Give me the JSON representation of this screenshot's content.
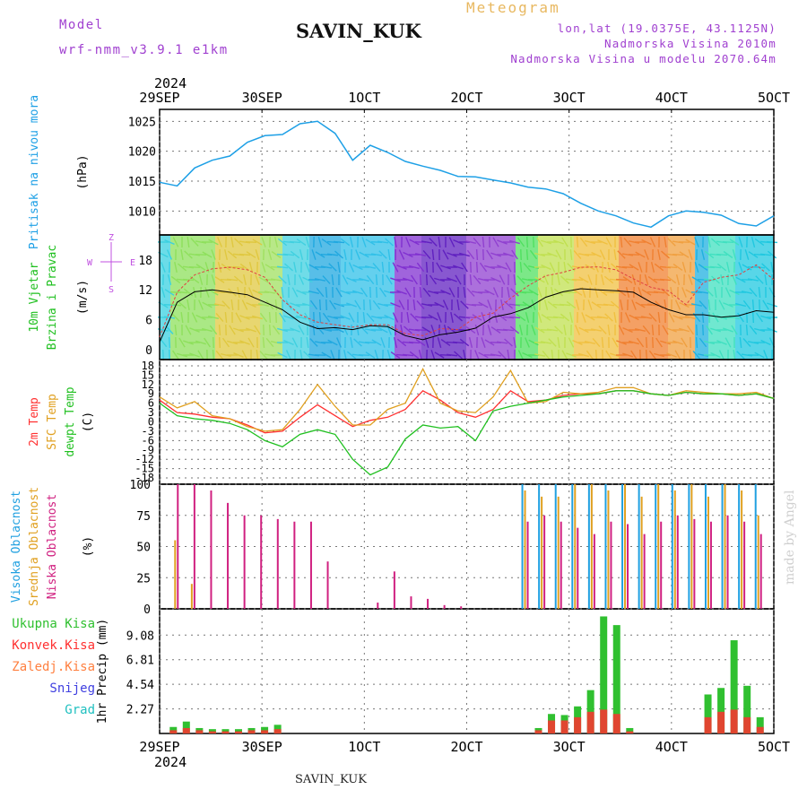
{
  "header": {
    "title": "SAVIN_KUK",
    "meteogram": "Meteogram",
    "model_label": "Model",
    "model_value": "wrf-nmm_v3.9.1 e1km",
    "lonlat": "lon,lat (19.0375E, 43.1125N)",
    "elevation": "Nadmorska Visina 2010m",
    "model_elevation": "Nadmorska Visina u modelu 2070.64m",
    "credit": "made by Angel",
    "footer": "SAVIN_KUK"
  },
  "colors": {
    "pressure": "#1ea0e6",
    "t2m": "#ff3030",
    "sfc": "#e0a020",
    "dew": "#20c020",
    "high_cloud": "#20a0e0",
    "mid_cloud": "#e0a020",
    "low_cloud": "#d02080",
    "rain_total": "#30c030",
    "rain_conv": "#ff3030",
    "freezing": "#ff8040",
    "snow": "#4040e0",
    "hail": "#20c0c0",
    "wind_legend": "#c050e0"
  },
  "chart_data": [
    {
      "type": "line",
      "panel": "pressure",
      "x_axis_top": {
        "year": "2024",
        "ticks": [
          "29SEP",
          "30SEP",
          "1OCT",
          "2OCT",
          "3OCT",
          "4OCT",
          "5OCT"
        ]
      },
      "ylabel_lines": [
        "Pritisak na nivou mora",
        "(hPa)"
      ],
      "yticks": [
        1010,
        1015,
        1020,
        1025
      ],
      "ylim": [
        1006,
        1027
      ],
      "series": [
        {
          "key": "pressure",
          "values": [
            1014.8,
            1014.2,
            1017.2,
            1018.5,
            1019.2,
            1021.5,
            1022.6,
            1022.8,
            1024.6,
            1025.0,
            1023.0,
            1018.5,
            1021.0,
            1019.8,
            1018.3,
            1017.5,
            1016.8,
            1015.8,
            1015.7,
            1015.2,
            1014.7,
            1014.0,
            1013.7,
            1012.9,
            1011.3,
            1010.0,
            1009.2,
            1008.0,
            1007.3,
            1009.2,
            1010.0,
            1009.8,
            1009.3,
            1007.9,
            1007.5,
            1009.2
          ]
        }
      ]
    },
    {
      "type": "line",
      "panel": "wind",
      "ylabel_lines": [
        "10m Vjetar",
        "Brzina i Pravac",
        "(m/s)"
      ],
      "compass": [
        "Z",
        "W",
        "E",
        "S"
      ],
      "yticks": [
        0,
        6,
        12,
        18
      ],
      "ylim": [
        -2,
        23
      ],
      "series": [
        {
          "key": "speed",
          "values": [
            1.5,
            9.5,
            11.6,
            12.0,
            11.5,
            11.0,
            9.5,
            8.0,
            5.5,
            4.2,
            4.4,
            4.0,
            4.8,
            4.6,
            2.8,
            2.0,
            3.0,
            3.5,
            4.3,
            6.5,
            7.2,
            8.4,
            10.5,
            11.6,
            12.2,
            12.0,
            11.8,
            11.5,
            9.5,
            8.0,
            7.0,
            7.0,
            6.5,
            6.8,
            7.8,
            7.5
          ]
        },
        {
          "key": "gust",
          "values": [
            2.5,
            11.5,
            15.0,
            16.2,
            16.5,
            16.0,
            14.5,
            10.0,
            7.0,
            5.5,
            5.0,
            4.5,
            5.0,
            5.0,
            3.2,
            2.8,
            4.2,
            4.0,
            6.5,
            7.3,
            10.3,
            12.8,
            14.8,
            15.5,
            16.5,
            16.6,
            16.0,
            14.2,
            12.5,
            11.8,
            9.0,
            13.5,
            14.5,
            15.0,
            17.0,
            14.0
          ]
        }
      ]
    },
    {
      "type": "line",
      "panel": "temperature",
      "ylabel_lines": [
        "2m Temp",
        "SFC Temp",
        "dewpt Temp",
        "(C)"
      ],
      "yticks": [
        -18,
        -15,
        -12,
        -9,
        -6,
        -3,
        0,
        3,
        6,
        9,
        12,
        15,
        18
      ],
      "ylim": [
        -20,
        20
      ],
      "series": [
        {
          "key": "t2m",
          "values": [
            7.0,
            3.0,
            2.5,
            1.5,
            1.0,
            -1.0,
            -3.5,
            -3.0,
            1.5,
            5.5,
            2.0,
            -1.5,
            0.5,
            1.5,
            4.0,
            10.0,
            7.0,
            3.0,
            1.5,
            4.0,
            10.0,
            6.5,
            7.0,
            8.5,
            9.0,
            9.0,
            10.0,
            10.0,
            9.0,
            8.5,
            9.5,
            9.0,
            9.0,
            8.5,
            9.0,
            7.5
          ]
        },
        {
          "key": "sfc",
          "values": [
            8.0,
            4.5,
            6.5,
            2.0,
            1.0,
            -1.5,
            -3.0,
            -2.5,
            4.0,
            12.0,
            5.0,
            -1.0,
            -1.0,
            4.0,
            6.0,
            17.0,
            6.0,
            3.5,
            3.0,
            8.0,
            16.5,
            6.0,
            6.5,
            9.5,
            9.0,
            9.5,
            11.0,
            11.0,
            9.0,
            8.5,
            10.0,
            9.5,
            9.0,
            9.0,
            9.5,
            7.5
          ]
        },
        {
          "key": "dew",
          "values": [
            6.0,
            2.0,
            1.0,
            0.5,
            -0.5,
            -2.5,
            -6.0,
            -8.0,
            -4.0,
            -2.5,
            -4.0,
            -12.0,
            -17.0,
            -14.5,
            -5.5,
            -1.0,
            -2.0,
            -1.5,
            -6.0,
            3.5,
            5.0,
            6.0,
            7.0,
            8.0,
            8.5,
            9.0,
            10.0,
            10.0,
            9.0,
            8.5,
            9.5,
            9.0,
            9.0,
            8.5,
            9.0,
            7.5
          ]
        }
      ]
    },
    {
      "type": "bar",
      "panel": "cloud",
      "ylabel_lines": [
        "Visoka Oblacnost",
        "Srednja Oblacnost",
        "Niska Oblacnost",
        "(%)"
      ],
      "yticks": [
        0,
        25,
        50,
        75,
        100
      ],
      "ylim": [
        0,
        100
      ],
      "series": [
        {
          "key": "high",
          "values": [
            0,
            0,
            0,
            0,
            0,
            0,
            0,
            0,
            0,
            0,
            0,
            0,
            0,
            0,
            0,
            0,
            0,
            0,
            0,
            0,
            0,
            100,
            100,
            100,
            100,
            100,
            100,
            100,
            100,
            100,
            100,
            100,
            100,
            100,
            100,
            100
          ]
        },
        {
          "key": "mid",
          "values": [
            55,
            20,
            0,
            0,
            0,
            0,
            0,
            0,
            0,
            0,
            0,
            0,
            0,
            0,
            0,
            0,
            0,
            0,
            0,
            0,
            0,
            95,
            90,
            90,
            100,
            100,
            95,
            100,
            90,
            100,
            95,
            100,
            90,
            100,
            95,
            75
          ]
        },
        {
          "key": "low",
          "values": [
            100,
            100,
            95,
            85,
            75,
            75,
            72,
            70,
            70,
            38,
            0,
            0,
            5,
            30,
            10,
            8,
            3,
            2,
            0,
            0,
            0,
            70,
            75,
            70,
            65,
            60,
            70,
            68,
            60,
            70,
            75,
            72,
            70,
            75,
            70,
            60
          ]
        }
      ]
    },
    {
      "type": "bar",
      "panel": "precip",
      "ylabel_lines": [
        "1hr Precip (mm)"
      ],
      "legend": [
        "Ukupna Kisa",
        "Konvek.Kisa",
        "Zaledj.Kisa",
        "Snijeg",
        "Grad"
      ],
      "x_axis_bottom": {
        "year": "2024",
        "ticks": [
          "29SEP",
          "30SEP",
          "1OCT",
          "2OCT",
          "3OCT",
          "4OCT",
          "5OCT"
        ]
      },
      "yticks": [
        2.27,
        4.54,
        6.81,
        9.08
      ],
      "ylim": [
        0,
        11.5
      ],
      "series": [
        {
          "key": "total",
          "values": [
            0.6,
            1.1,
            0.5,
            0.4,
            0.4,
            0.4,
            0.5,
            0.6,
            0.8,
            0,
            0,
            0,
            0,
            0,
            0,
            0,
            0,
            0,
            0,
            0,
            0,
            0,
            0,
            0,
            0,
            0,
            0,
            0,
            0.5,
            1.8,
            1.7,
            2.5,
            4.0,
            10.8,
            10.0,
            0.5,
            0,
            0,
            0,
            0,
            0,
            3.6,
            4.2,
            8.6,
            4.4,
            1.5
          ]
        },
        {
          "key": "conv",
          "values": [
            0.3,
            0.5,
            0.3,
            0.2,
            0.2,
            0.2,
            0.3,
            0.3,
            0.4,
            0,
            0,
            0,
            0,
            0,
            0,
            0,
            0,
            0,
            0,
            0,
            0,
            0,
            0,
            0,
            0,
            0,
            0,
            0,
            0.3,
            1.2,
            1.2,
            1.5,
            2.0,
            2.2,
            1.8,
            0.2,
            0,
            0,
            0,
            0,
            0,
            1.5,
            2.0,
            2.2,
            1.5,
            0.6
          ]
        }
      ]
    }
  ]
}
